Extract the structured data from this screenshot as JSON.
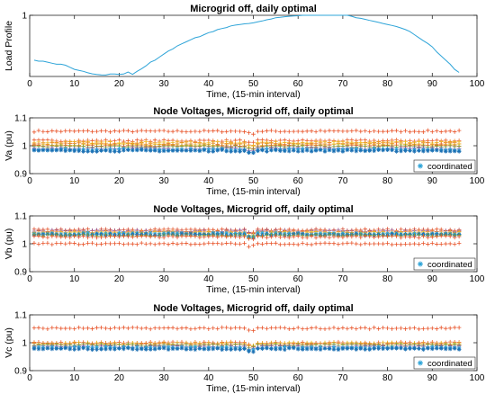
{
  "chart_data": [
    {
      "type": "line",
      "title": "Microgrid off, daily optimal",
      "xlabel": "Time, (15-min interval)",
      "ylabel": "Load Profile",
      "xlim": [
        0,
        100
      ],
      "ylim": [
        0.7,
        1
      ],
      "xticks": [
        0,
        10,
        20,
        30,
        40,
        50,
        60,
        70,
        80,
        90,
        100
      ],
      "yticks": [
        1
      ],
      "grid": false,
      "color": "#2ea4d8",
      "x": [
        1,
        2,
        3,
        4,
        5,
        6,
        7,
        8,
        9,
        10,
        11,
        12,
        13,
        14,
        15,
        16,
        17,
        18,
        19,
        20,
        21,
        22,
        23,
        24,
        25,
        26,
        27,
        28,
        29,
        30,
        31,
        32,
        33,
        34,
        35,
        36,
        37,
        38,
        39,
        40,
        41,
        42,
        43,
        44,
        45,
        46,
        47,
        48,
        49,
        50,
        51,
        52,
        53,
        54,
        55,
        56,
        57,
        58,
        59,
        60,
        61,
        62,
        63,
        64,
        65,
        66,
        67,
        68,
        69,
        70,
        71,
        72,
        73,
        74,
        75,
        76,
        77,
        78,
        79,
        80,
        81,
        82,
        83,
        84,
        85,
        86,
        87,
        88,
        89,
        90,
        91,
        92,
        93,
        94,
        95,
        96
      ],
      "y": [
        0.78,
        0.775,
        0.775,
        0.77,
        0.765,
        0.76,
        0.76,
        0.755,
        0.745,
        0.735,
        0.73,
        0.725,
        0.718,
        0.713,
        0.71,
        0.708,
        0.707,
        0.712,
        0.712,
        0.71,
        0.712,
        0.722,
        0.71,
        0.725,
        0.738,
        0.752,
        0.77,
        0.78,
        0.795,
        0.81,
        0.825,
        0.835,
        0.85,
        0.86,
        0.87,
        0.88,
        0.89,
        0.895,
        0.905,
        0.915,
        0.92,
        0.93,
        0.935,
        0.94,
        0.948,
        0.952,
        0.955,
        0.958,
        0.96,
        0.963,
        0.968,
        0.972,
        0.978,
        0.982,
        0.988,
        0.99,
        0.993,
        0.995,
        0.997,
        0.998,
        1,
        1,
        1,
        1,
        1,
        1,
        1,
        1,
        1,
        1,
        1,
        0.995,
        0.988,
        0.985,
        0.98,
        0.975,
        0.97,
        0.965,
        0.96,
        0.955,
        0.95,
        0.945,
        0.938,
        0.93,
        0.92,
        0.905,
        0.89,
        0.875,
        0.862,
        0.845,
        0.82,
        0.8,
        0.78,
        0.76,
        0.735,
        0.72
      ]
    },
    {
      "type": "scatter",
      "title": "Node Voltages, Microgrid off, daily optimal",
      "xlabel": "Time, (15-min interval)",
      "ylabel": "Va (pu)",
      "xlim": [
        0,
        100
      ],
      "ylim": [
        0.9,
        1.1
      ],
      "xticks": [
        0,
        10,
        20,
        30,
        40,
        50,
        60,
        70,
        80,
        90,
        100
      ],
      "yticks": [
        0.9,
        1,
        1.1
      ],
      "legend": {
        "entries": [
          "coordinated"
        ],
        "position": "bottom-right"
      },
      "marker_groups": [
        {
          "level": 1.052,
          "color": "#e8542a"
        },
        {
          "level": 1.018,
          "color": "#e8542a"
        },
        {
          "level": 1.012,
          "color": "#eec425"
        },
        {
          "level": 1.008,
          "color": "#e87a2a"
        },
        {
          "level": 1.004,
          "color": "#eec425"
        },
        {
          "level": 1.0,
          "color": "#e8542a"
        },
        {
          "level": 0.997,
          "color": "#7aa83a"
        },
        {
          "level": 0.99,
          "color": "#8a4d9a"
        },
        {
          "level": 0.986,
          "color": "#2ea4d8",
          "series": "coordinated"
        },
        {
          "level": 0.982,
          "color": "#1b6fb3",
          "series": "coordinated"
        }
      ]
    },
    {
      "type": "scatter",
      "title": "Node Voltages, Microgrid off, daily optimal",
      "xlabel": "Time, (15-min interval)",
      "ylabel": "Vb (pu)",
      "xlim": [
        0,
        100
      ],
      "ylim": [
        0.9,
        1.1
      ],
      "xticks": [
        0,
        10,
        20,
        30,
        40,
        50,
        60,
        70,
        80,
        90,
        100
      ],
      "yticks": [
        0.9,
        1,
        1.1
      ],
      "legend": {
        "entries": [
          "coordinated"
        ],
        "position": "bottom-right"
      },
      "marker_groups": [
        {
          "level": 1.05,
          "color": "#e8542a"
        },
        {
          "level": 1.046,
          "color": "#8a4d9a"
        },
        {
          "level": 1.043,
          "color": "#e87a2a"
        },
        {
          "level": 1.04,
          "color": "#eec425"
        },
        {
          "level": 1.036,
          "color": "#2ea4d8",
          "series": "coordinated"
        },
        {
          "level": 1.033,
          "color": "#1b6fb3",
          "series": "coordinated"
        },
        {
          "level": 1.03,
          "color": "#7aa83a"
        },
        {
          "level": 1.025,
          "color": "#e8542a"
        },
        {
          "level": 1.0,
          "color": "#e8542a"
        }
      ]
    },
    {
      "type": "scatter",
      "title": "Node Voltages, Microgrid off, daily optimal",
      "xlabel": "Time, (15-min interval)",
      "ylabel": "Vc (pu)",
      "xlim": [
        0,
        100
      ],
      "ylim": [
        0.9,
        1.1
      ],
      "xticks": [
        0,
        10,
        20,
        30,
        40,
        50,
        60,
        70,
        80,
        90,
        100
      ],
      "yticks": [
        0.9,
        1,
        1.1
      ],
      "legend": {
        "entries": [
          "coordinated"
        ],
        "position": "bottom-right"
      },
      "marker_groups": [
        {
          "level": 1.052,
          "color": "#e8542a"
        },
        {
          "level": 1.0,
          "color": "#e8542a"
        },
        {
          "level": 0.998,
          "color": "#eec425"
        },
        {
          "level": 0.995,
          "color": "#e87a2a"
        },
        {
          "level": 0.992,
          "color": "#7aa83a"
        },
        {
          "level": 0.986,
          "color": "#8a4d9a"
        },
        {
          "level": 0.982,
          "color": "#2ea4d8",
          "series": "coordinated"
        },
        {
          "level": 0.978,
          "color": "#1b6fb3",
          "series": "coordinated"
        }
      ]
    }
  ]
}
